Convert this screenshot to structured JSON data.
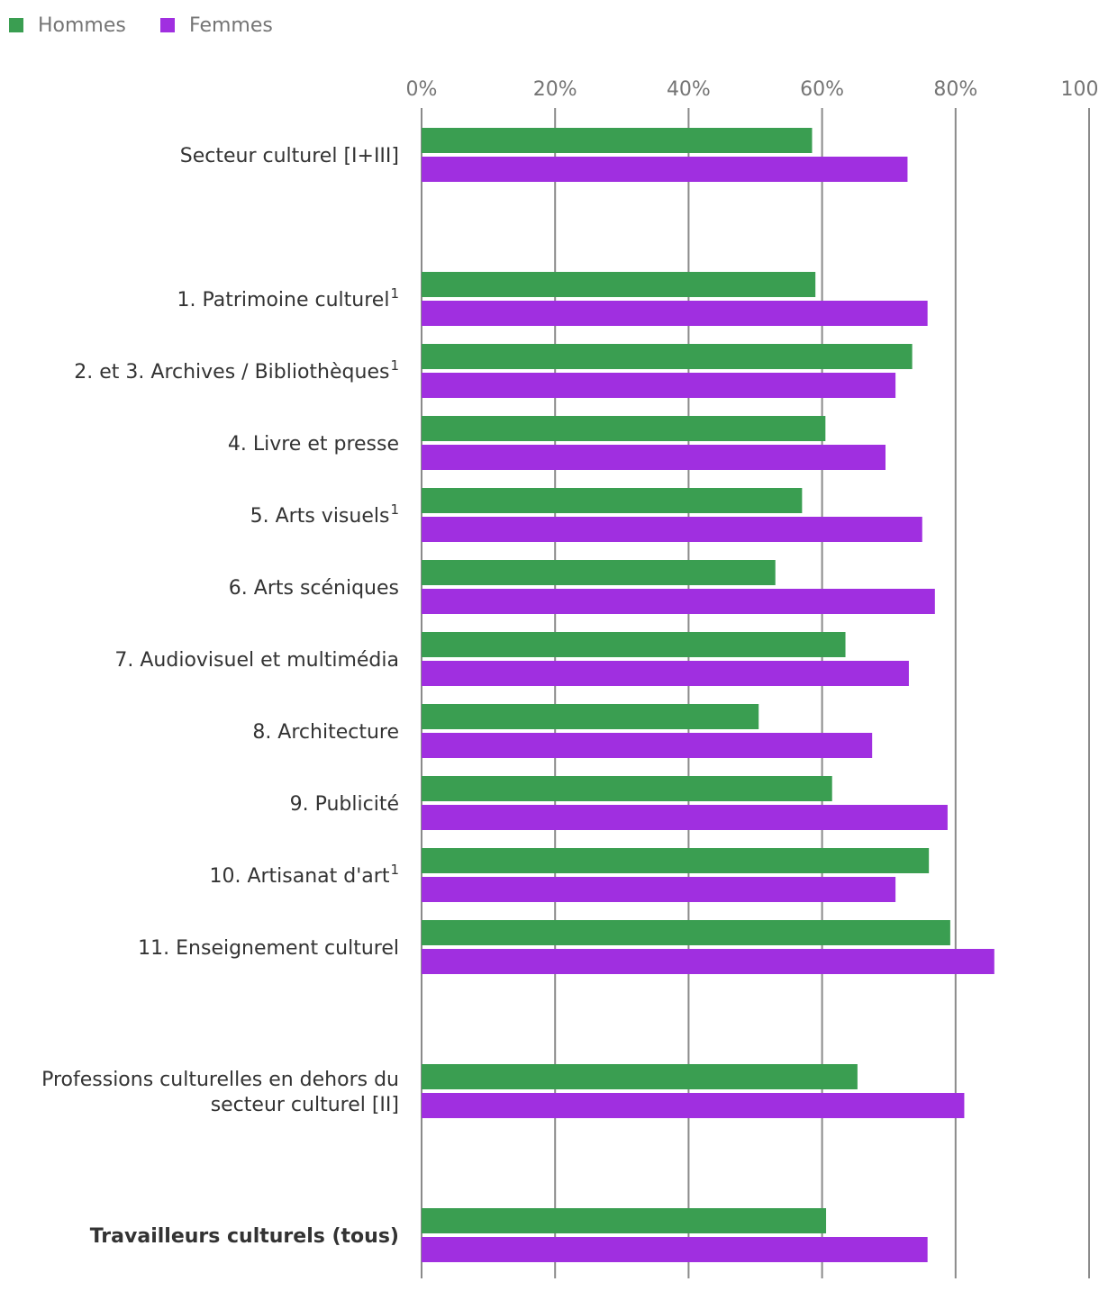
{
  "chart_data": {
    "type": "bar",
    "orientation": "horizontal",
    "title": "",
    "xlabel": "",
    "ylabel": "",
    "xlim": [
      0,
      100
    ],
    "grid": true,
    "legend_position": "top-left",
    "ticks": [
      "0%",
      "20%",
      "40%",
      "60%",
      "80%",
      "100%"
    ],
    "tick_values": [
      0,
      20,
      40,
      60,
      80,
      100
    ],
    "categories": [
      {
        "label": "Secteur culturel [I+III]",
        "sup": "",
        "bold": false,
        "gap_after": true
      },
      {
        "label": "1. Patrimoine culturel",
        "sup": "1",
        "bold": false,
        "gap_after": false
      },
      {
        "label": "2. et 3. Archives / Bibliothèques",
        "sup": "1",
        "bold": false,
        "gap_after": false
      },
      {
        "label": "4. Livre et presse",
        "sup": "",
        "bold": false,
        "gap_after": false
      },
      {
        "label": "5. Arts visuels",
        "sup": "1",
        "bold": false,
        "gap_after": false
      },
      {
        "label": "6. Arts scéniques",
        "sup": "",
        "bold": false,
        "gap_after": false
      },
      {
        "label": "7. Audiovisuel et multimédia",
        "sup": "",
        "bold": false,
        "gap_after": false
      },
      {
        "label": "8. Architecture",
        "sup": "",
        "bold": false,
        "gap_after": false
      },
      {
        "label": "9. Publicité",
        "sup": "",
        "bold": false,
        "gap_after": false
      },
      {
        "label": "10. Artisanat d'art",
        "sup": "1",
        "bold": false,
        "gap_after": false
      },
      {
        "label": "11. Enseignement culturel",
        "sup": "",
        "bold": false,
        "gap_after": true
      },
      {
        "label": [
          "Professions culturelles en dehors du",
          "secteur culturel [II]"
        ],
        "sup": "",
        "bold": false,
        "gap_after": true
      },
      {
        "label": "Travailleurs culturels (tous)",
        "sup": "",
        "bold": true,
        "gap_after": false
      }
    ],
    "series": [
      {
        "name": "Hommes",
        "color": "#3a9e51",
        "values": [
          58.5,
          59,
          73.5,
          60.5,
          57,
          53,
          63.5,
          50.5,
          61.5,
          76,
          79.2,
          65.3,
          60.6
        ]
      },
      {
        "name": "Femmes",
        "color": "#a02fe0",
        "values": [
          72.8,
          75.8,
          71,
          69.5,
          75,
          76.9,
          73,
          67.5,
          78.8,
          71,
          85.8,
          81.3,
          75.8
        ]
      }
    ]
  }
}
